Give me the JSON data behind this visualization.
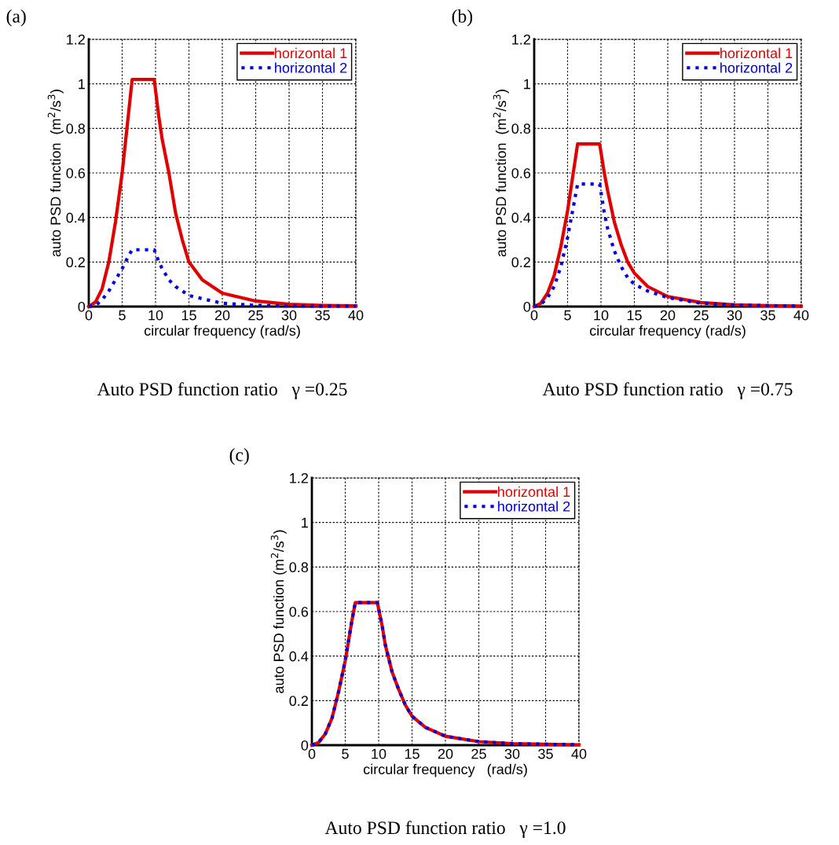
{
  "chart_data": [
    {
      "type": "line",
      "title": "Auto PSD function ratio   γ =0.25",
      "annotations": [
        "(a)"
      ],
      "xlabel": "circular frequency (rad/s)",
      "ylabel": "auto PSD function  (m$^{2}$/s$^{3}$)",
      "xlim": [
        0,
        40
      ],
      "ylim": [
        0,
        1.2
      ],
      "xticks": [
        0,
        5,
        10,
        15,
        20,
        25,
        30,
        35,
        40
      ],
      "yticks": [
        0,
        0.2,
        0.4,
        0.6,
        0.8,
        1,
        1.2
      ],
      "grid": true,
      "legend": "top right",
      "x": [
        0,
        1,
        2,
        3,
        4,
        5,
        6,
        6.5,
        9.8,
        10.5,
        11,
        12,
        13,
        14,
        15,
        17,
        20,
        25,
        30,
        35,
        40
      ],
      "series": [
        {
          "name": "horizontal 1",
          "color": "#e00000",
          "line_style": "solid",
          "values": [
            0,
            0.02,
            0.08,
            0.2,
            0.38,
            0.6,
            0.88,
            1.02,
            1.02,
            0.85,
            0.75,
            0.6,
            0.42,
            0.3,
            0.2,
            0.12,
            0.06,
            0.025,
            0.01,
            0.005,
            0.003
          ]
        },
        {
          "name": "horizontal 2",
          "color": "#0000e0",
          "line_style": "dotted",
          "values": [
            0,
            0.005,
            0.03,
            0.07,
            0.12,
            0.17,
            0.23,
            0.255,
            0.255,
            0.2,
            0.17,
            0.12,
            0.09,
            0.07,
            0.05,
            0.035,
            0.015,
            0.005,
            0.003,
            0.002,
            0.002
          ]
        }
      ]
    },
    {
      "type": "line",
      "title": "Auto PSD function ratio   γ =0.75",
      "annotations": [
        "(b)"
      ],
      "xlabel": "circular frequency (rad/s)",
      "ylabel": "auto PSD function  (m$^{2}$/s$^{3}$)",
      "xlim": [
        0,
        40
      ],
      "ylim": [
        0,
        1.2
      ],
      "xticks": [
        0,
        5,
        10,
        15,
        20,
        25,
        30,
        35,
        40
      ],
      "yticks": [
        0,
        0.2,
        0.4,
        0.6,
        0.8,
        1,
        1.2
      ],
      "grid": true,
      "legend": "top right",
      "x": [
        0,
        1,
        2,
        3,
        4,
        5,
        6,
        6.5,
        9.8,
        10.5,
        11,
        12,
        13,
        14,
        15,
        17,
        20,
        25,
        30,
        35,
        40
      ],
      "series": [
        {
          "name": "horizontal 1",
          "color": "#e00000",
          "line_style": "solid",
          "values": [
            0,
            0.015,
            0.06,
            0.14,
            0.27,
            0.43,
            0.63,
            0.73,
            0.73,
            0.6,
            0.52,
            0.38,
            0.28,
            0.2,
            0.15,
            0.09,
            0.045,
            0.018,
            0.008,
            0.004,
            0.002
          ]
        },
        {
          "name": "horizontal 2",
          "color": "#0000e0",
          "line_style": "dotted",
          "values": [
            0,
            0.01,
            0.04,
            0.09,
            0.18,
            0.31,
            0.47,
            0.55,
            0.55,
            0.42,
            0.35,
            0.25,
            0.18,
            0.13,
            0.1,
            0.07,
            0.04,
            0.015,
            0.007,
            0.004,
            0.002
          ]
        }
      ]
    },
    {
      "type": "line",
      "title": "Auto PSD function ratio   γ =1.0",
      "annotations": [
        "(c)"
      ],
      "xlabel": "circular frequency   (rad/s)",
      "ylabel": "auto PSD function (m$^{2}$/s$^{3}$)",
      "xlim": [
        0,
        40
      ],
      "ylim": [
        0,
        1.2
      ],
      "xticks": [
        0,
        5,
        10,
        15,
        20,
        25,
        30,
        35,
        40
      ],
      "yticks": [
        0,
        0.2,
        0.4,
        0.6,
        0.8,
        1,
        1.2
      ],
      "grid": true,
      "legend": "top right",
      "x": [
        0,
        1,
        2,
        3,
        4,
        5,
        6,
        6.5,
        9.8,
        10.5,
        11,
        12,
        13,
        14,
        15,
        17,
        20,
        25,
        30,
        35,
        40
      ],
      "series": [
        {
          "name": "horizontal 1",
          "color": "#e00000",
          "line_style": "solid",
          "values": [
            0,
            0.012,
            0.05,
            0.12,
            0.24,
            0.38,
            0.56,
            0.64,
            0.64,
            0.54,
            0.45,
            0.33,
            0.25,
            0.18,
            0.13,
            0.08,
            0.04,
            0.016,
            0.007,
            0.004,
            0.002
          ]
        },
        {
          "name": "horizontal 2",
          "color": "#0000e0",
          "line_style": "dotted",
          "values": [
            0,
            0.012,
            0.05,
            0.12,
            0.24,
            0.38,
            0.56,
            0.64,
            0.64,
            0.54,
            0.45,
            0.33,
            0.25,
            0.18,
            0.13,
            0.08,
            0.04,
            0.016,
            0.007,
            0.004,
            0.002
          ]
        }
      ]
    }
  ]
}
